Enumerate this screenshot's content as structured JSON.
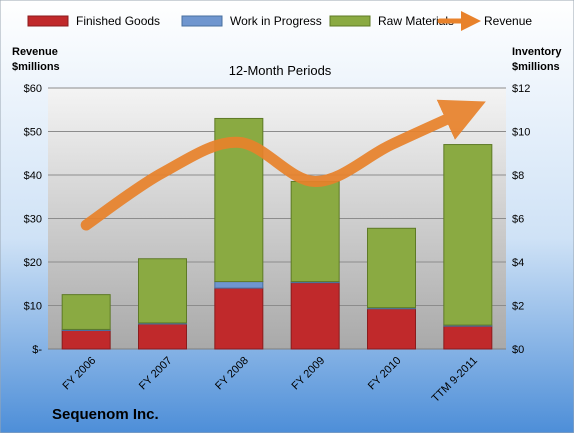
{
  "chart_data": {
    "type": "bar",
    "stacked": true,
    "title": "Sequenom Inc.",
    "subtitle": "12-Month Periods",
    "categories": [
      "FY 2006",
      "FY 2007",
      "FY 2008",
      "FY 2009",
      "FY 2010",
      "TTM 9-2011"
    ],
    "series": [
      {
        "name": "Finished Goods",
        "axis": "right",
        "color": "#c0292b",
        "values": [
          0.85,
          1.15,
          2.8,
          3.05,
          1.85,
          1.05
        ]
      },
      {
        "name": "Work in Progress",
        "axis": "right",
        "color": "#6f96cf",
        "values": [
          0.05,
          0.05,
          0.3,
          0.05,
          0.05,
          0.05
        ]
      },
      {
        "name": "Raw Materials",
        "axis": "right",
        "color": "#8aaa42",
        "values": [
          1.6,
          2.95,
          7.5,
          4.6,
          3.65,
          8.3
        ]
      },
      {
        "name": "Revenue",
        "axis": "left",
        "type": "line",
        "color": "#e8822b",
        "values": [
          28.5,
          40.5,
          47.5,
          38.5,
          47.0,
          55.0
        ]
      }
    ],
    "left_axis": {
      "label_line1": "Revenue",
      "label_line2": "$millions",
      "ylim": [
        0,
        60
      ],
      "ticks": [
        "$-",
        "$10",
        "$20",
        "$30",
        "$40",
        "$50",
        "$60"
      ]
    },
    "right_axis": {
      "label_line1": "Inventory",
      "label_line2": "$millions",
      "ylim": [
        0,
        12
      ],
      "ticks": [
        "$0",
        "$2",
        "$4",
        "$6",
        "$8",
        "$10",
        "$12"
      ]
    },
    "grid": true,
    "legend_position": "top"
  }
}
